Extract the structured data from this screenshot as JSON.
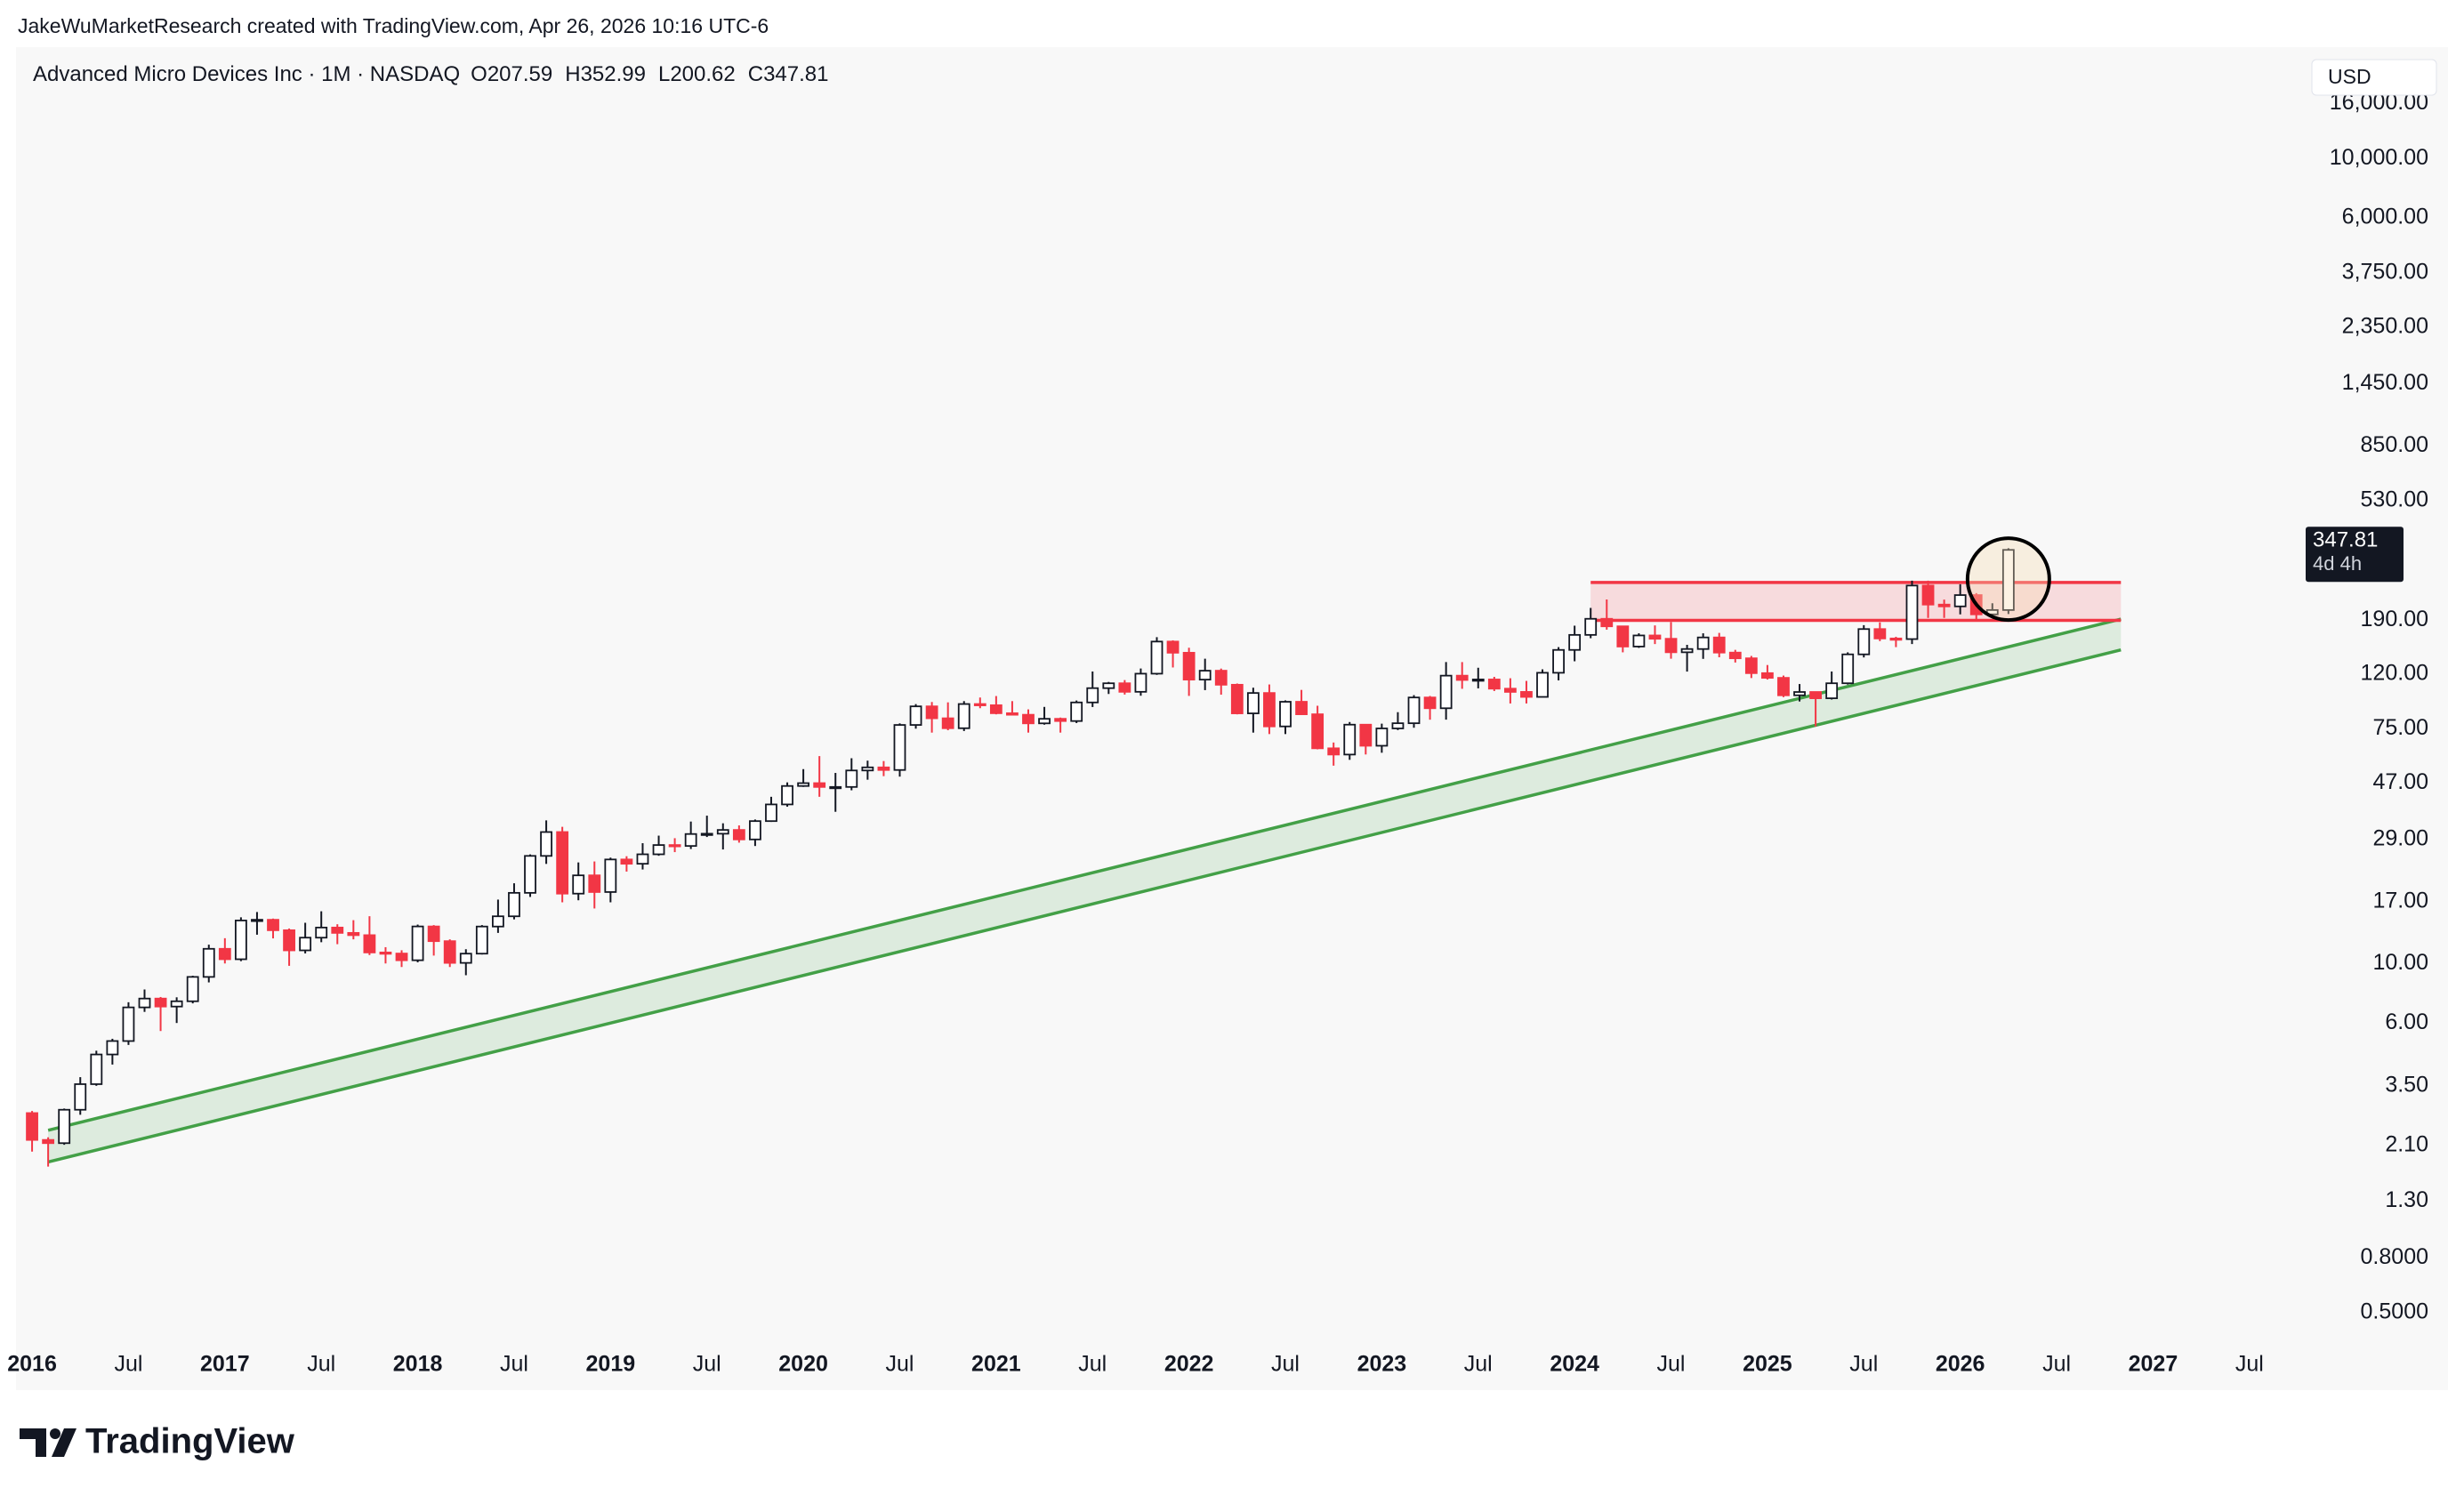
{
  "header": {
    "credit": "JakeWuMarketResearch created with TradingView.com, Apr 26, 2026 10:16 UTC-6",
    "brand": "TradingView"
  },
  "chart_data": {
    "type": "candlestick",
    "title": "Advanced Micro Devices Inc · 1M · NASDAQ",
    "ohlc_labels": [
      "O",
      "H",
      "L",
      "C"
    ],
    "currency": "USD",
    "countdown": "4d 4h",
    "log_scale": true,
    "grid": false,
    "up_color": "#ffffff",
    "down_color": "#f23645",
    "border_color": "#131722",
    "x": [
      "2016-01",
      "2016-02",
      "2016-03",
      "2016-04",
      "2016-05",
      "2016-06",
      "2016-07",
      "2016-08",
      "2016-09",
      "2016-10",
      "2016-11",
      "2016-12",
      "2017-01",
      "2017-02",
      "2017-03",
      "2017-04",
      "2017-05",
      "2017-06",
      "2017-07",
      "2017-08",
      "2017-09",
      "2017-10",
      "2017-11",
      "2017-12",
      "2018-01",
      "2018-02",
      "2018-03",
      "2018-04",
      "2018-05",
      "2018-06",
      "2018-07",
      "2018-08",
      "2018-09",
      "2018-10",
      "2018-11",
      "2018-12",
      "2019-01",
      "2019-02",
      "2019-03",
      "2019-04",
      "2019-05",
      "2019-06",
      "2019-07",
      "2019-08",
      "2019-09",
      "2019-10",
      "2019-11",
      "2019-12",
      "2020-01",
      "2020-02",
      "2020-03",
      "2020-04",
      "2020-05",
      "2020-06",
      "2020-07",
      "2020-08",
      "2020-09",
      "2020-10",
      "2020-11",
      "2020-12",
      "2021-01",
      "2021-02",
      "2021-03",
      "2021-04",
      "2021-05",
      "2021-06",
      "2021-07",
      "2021-08",
      "2021-09",
      "2021-10",
      "2021-11",
      "2021-12",
      "2022-01",
      "2022-02",
      "2022-03",
      "2022-04",
      "2022-05",
      "2022-06",
      "2022-07",
      "2022-08",
      "2022-09",
      "2022-10",
      "2022-11",
      "2022-12",
      "2023-01",
      "2023-02",
      "2023-03",
      "2023-04",
      "2023-05",
      "2023-06",
      "2023-07",
      "2023-08",
      "2023-09",
      "2023-10",
      "2023-11",
      "2023-12",
      "2024-01",
      "2024-02",
      "2024-03",
      "2024-04",
      "2024-05",
      "2024-06",
      "2024-07",
      "2024-08",
      "2024-09",
      "2024-10",
      "2024-11",
      "2024-12",
      "2025-01",
      "2025-02",
      "2025-03",
      "2025-04",
      "2025-05",
      "2025-06",
      "2025-07",
      "2025-08",
      "2025-09",
      "2025-10",
      "2025-11",
      "2025-12",
      "2026-01",
      "2026-02",
      "2026-03",
      "2026-04"
    ],
    "open": [
      2.77,
      2.2,
      2.14,
      2.85,
      3.55,
      4.58,
      5.14,
      6.86,
      7.4,
      6.91,
      7.23,
      8.91,
      11.34,
      10.37,
      14.46,
      14.55,
      13.3,
      11.19,
      12.48,
      13.61,
      13.0,
      12.75,
      10.99,
      10.89,
      10.28,
      13.74,
      12.11,
      10.05,
      10.88,
      13.73,
      14.99,
      18.33,
      25.17,
      30.89,
      18.21,
      21.3,
      18.46,
      24.41,
      23.53,
      25.52,
      27.63,
      27.41,
      30.37,
      30.45,
      31.45,
      28.99,
      33.93,
      39.15,
      45.86,
      47.0,
      45.48,
      45.48,
      52.39,
      53.8,
      52.61,
      77.43,
      90.82,
      81.99,
      75.29,
      92.66,
      91.71,
      85.64,
      84.51,
      78.5,
      81.62,
      80.08,
      93.93,
      106.19,
      110.72,
      102.9,
      120.23,
      158.37,
      143.9,
      114.25,
      123.34,
      109.34,
      85.52,
      101.86,
      76.47,
      94.47,
      84.86,
      63.36,
      60.06,
      77.63,
      64.77,
      75.15,
      78.58,
      98.01,
      89.37,
      118.21,
      113.91,
      114.4,
      105.72,
      102.82,
      98.5,
      121.16,
      147.41,
      167.69,
      192.53,
      180.49,
      151.74,
      166.9,
      162.21,
      144.48,
      148.56,
      164.08,
      144.08,
      137.18,
      120.79,
      116.0,
      99.86,
      102.74,
      97.35,
      110.73,
      141.9,
      176.31,
      162.63,
      161.79,
      256.12,
      217.53,
      214.16,
      236.0,
      200.0,
      207.59
    ],
    "high": [
      2.82,
      2.25,
      2.88,
      3.77,
      4.73,
      5.24,
      7.17,
      8.0,
      7.5,
      7.48,
      9.0,
      11.75,
      12.42,
      14.86,
      15.55,
      14.7,
      13.5,
      14.18,
      15.65,
      14.0,
      14.5,
      15.0,
      11.5,
      11.2,
      13.96,
      13.9,
      12.3,
      11.3,
      13.9,
      17.3,
      19.9,
      25.5,
      34.14,
      32.3,
      23.8,
      24.0,
      24.8,
      25.1,
      28.07,
      29.95,
      29.3,
      33.8,
      35.55,
      33.3,
      32.7,
      34.4,
      41.8,
      47.3,
      53.0,
      59.27,
      51.3,
      58.2,
      57.0,
      56.8,
      78.5,
      92.6,
      94.28,
      94.0,
      95.0,
      97.98,
      99.23,
      95.0,
      88.5,
      90.4,
      82.5,
      95.5,
      122.5,
      112.0,
      113.8,
      125.7,
      164.46,
      160.0,
      150.2,
      136.7,
      125.6,
      110.5,
      106.6,
      109.6,
      95.6,
      104.6,
      91.3,
      66.6,
      79.4,
      78.0,
      78.3,
      86.4,
      100.0,
      99.3,
      132.8,
      132.8,
      126.5,
      117.0,
      115.6,
      113.0,
      124.8,
      151.0,
      181.5,
      211.4,
      227.3,
      181.4,
      170.0,
      181.9,
      187.3,
      154.0,
      170.0,
      170.6,
      147.5,
      140.0,
      129.5,
      118.3,
      110.0,
      103.0,
      122.5,
      144.4,
      182.3,
      186.7,
      165.0,
      267.0,
      267.08,
      227.0,
      259.0,
      240.0,
      220.0,
      352.99
    ],
    "low": [
      1.99,
      1.75,
      2.11,
      2.73,
      3.5,
      4.2,
      4.97,
      6.6,
      5.6,
      6.0,
      7.1,
      8.5,
      10.0,
      10.2,
      12.8,
      12.4,
      9.8,
      10.9,
      12.0,
      11.8,
      12.3,
      10.75,
      10.0,
      9.7,
      10.1,
      10.7,
      9.7,
      9.04,
      10.8,
      13.0,
      14.6,
      17.7,
      23.5,
      16.9,
      17.2,
      16.03,
      16.9,
      22.0,
      22.4,
      25.2,
      26.0,
      26.7,
      29.6,
      26.6,
      28.2,
      27.4,
      33.7,
      38.4,
      45.5,
      41.8,
      36.75,
      44.2,
      48.4,
      49.9,
      49.7,
      75.0,
      72.5,
      74.0,
      73.5,
      89.4,
      84.8,
      84.0,
      72.5,
      77.6,
      72.5,
      78.7,
      90.3,
      101.0,
      100.5,
      99.5,
      119.0,
      126.8,
      99.35,
      104.4,
      100.4,
      84.8,
      72.5,
      71.6,
      71.6,
      84.5,
      62.8,
      54.6,
      57.4,
      60.1,
      61.0,
      74.1,
      75.6,
      81.0,
      81.0,
      105.6,
      106.0,
      103.6,
      93.1,
      93.1,
      98.3,
      113.5,
      133.7,
      163.0,
      175.4,
      144.4,
      150.0,
      155.0,
      136.7,
      122.4,
      136.5,
      138.4,
      132.3,
      115.8,
      114.3,
      98.3,
      94.7,
      76.48,
      96.3,
      109.5,
      138.2,
      159.0,
      151.0,
      155.0,
      194.0,
      194.0,
      200.0,
      190.0,
      194.0,
      200.62
    ],
    "close": [
      2.2,
      2.14,
      2.85,
      3.55,
      4.58,
      5.14,
      6.86,
      7.4,
      6.91,
      7.23,
      8.91,
      11.34,
      10.37,
      14.46,
      14.55,
      13.3,
      11.19,
      12.48,
      13.61,
      13.0,
      12.75,
      10.99,
      10.89,
      10.28,
      13.74,
      12.11,
      10.05,
      10.88,
      13.73,
      14.99,
      18.33,
      25.17,
      30.89,
      18.21,
      21.3,
      18.46,
      24.41,
      23.53,
      25.52,
      27.63,
      27.41,
      30.37,
      30.45,
      31.45,
      28.99,
      33.93,
      39.15,
      45.86,
      47.0,
      45.48,
      45.48,
      52.39,
      53.8,
      52.61,
      77.43,
      90.82,
      81.99,
      75.29,
      92.66,
      91.71,
      85.64,
      84.51,
      78.5,
      81.62,
      80.08,
      93.93,
      106.19,
      110.72,
      102.9,
      120.23,
      158.37,
      143.9,
      114.25,
      123.34,
      109.34,
      85.52,
      101.86,
      76.47,
      94.47,
      84.86,
      63.36,
      60.06,
      77.63,
      64.77,
      75.15,
      78.58,
      98.01,
      89.37,
      118.21,
      113.91,
      114.4,
      105.72,
      102.82,
      98.5,
      121.16,
      147.41,
      167.69,
      192.53,
      180.49,
      151.74,
      166.9,
      162.21,
      144.48,
      148.56,
      164.08,
      144.08,
      137.18,
      120.79,
      116.0,
      99.86,
      102.74,
      97.35,
      110.73,
      141.9,
      176.31,
      162.63,
      161.79,
      256.12,
      217.53,
      214.16,
      236.0,
      200.0,
      207.59,
      347.81
    ],
    "xlim": [
      "2015-12",
      "2027-10"
    ],
    "xticks": [
      {
        "value": "2016-01",
        "label": "2016"
      },
      {
        "value": "2016-07",
        "label": "Jul"
      },
      {
        "value": "2017-01",
        "label": "2017"
      },
      {
        "value": "2017-07",
        "label": "Jul"
      },
      {
        "value": "2018-01",
        "label": "2018"
      },
      {
        "value": "2018-07",
        "label": "Jul"
      },
      {
        "value": "2019-01",
        "label": "2019"
      },
      {
        "value": "2019-07",
        "label": "Jul"
      },
      {
        "value": "2020-01",
        "label": "2020"
      },
      {
        "value": "2020-07",
        "label": "Jul"
      },
      {
        "value": "2021-01",
        "label": "2021"
      },
      {
        "value": "2021-07",
        "label": "Jul"
      },
      {
        "value": "2022-01",
        "label": "2022"
      },
      {
        "value": "2022-07",
        "label": "Jul"
      },
      {
        "value": "2023-01",
        "label": "2023"
      },
      {
        "value": "2023-07",
        "label": "Jul"
      },
      {
        "value": "2024-01",
        "label": "2024"
      },
      {
        "value": "2024-07",
        "label": "Jul"
      },
      {
        "value": "2025-01",
        "label": "2025"
      },
      {
        "value": "2025-07",
        "label": "Jul"
      },
      {
        "value": "2026-01",
        "label": "2026"
      },
      {
        "value": "2026-07",
        "label": "Jul"
      },
      {
        "value": "2027-01",
        "label": "2027"
      },
      {
        "value": "2027-07",
        "label": "Jul"
      }
    ],
    "ylim": [
      0.4,
      26000
    ],
    "yticks": [
      {
        "value": 0.5,
        "label": "0.5000"
      },
      {
        "value": 0.8,
        "label": "0.8000"
      },
      {
        "value": 1.3,
        "label": "1.30"
      },
      {
        "value": 2.1,
        "label": "2.10"
      },
      {
        "value": 3.5,
        "label": "3.50"
      },
      {
        "value": 6,
        "label": "6.00"
      },
      {
        "value": 10,
        "label": "10.00"
      },
      {
        "value": 17,
        "label": "17.00"
      },
      {
        "value": 29,
        "label": "29.00"
      },
      {
        "value": 47,
        "label": "47.00"
      },
      {
        "value": 75,
        "label": "75.00"
      },
      {
        "value": 120,
        "label": "120.00"
      },
      {
        "value": 190,
        "label": "190.00"
      },
      {
        "value": 530,
        "label": "530.00"
      },
      {
        "value": 850,
        "label": "850.00"
      },
      {
        "value": 1450,
        "label": "1,450.00"
      },
      {
        "value": 2350,
        "label": "2,350.00"
      },
      {
        "value": 3750,
        "label": "3,750.00"
      },
      {
        "value": 6000,
        "label": "6,000.00"
      },
      {
        "value": 10000,
        "label": "10,000.00"
      },
      {
        "value": 16000,
        "label": "16,000.00"
      }
    ],
    "zone": {
      "start": "2024-02",
      "end": "2026-11",
      "top": 263,
      "bottom": 190,
      "color": "#f23645"
    },
    "channel": {
      "color": "#43a047",
      "upper": {
        "x": [
          "2016-02",
          "2026-11"
        ],
        "y": [
          2.39,
          192
        ]
      },
      "lower": {
        "x": [
          "2016-02",
          "2026-11"
        ],
        "y": [
          1.82,
          147.5
        ]
      }
    }
  }
}
